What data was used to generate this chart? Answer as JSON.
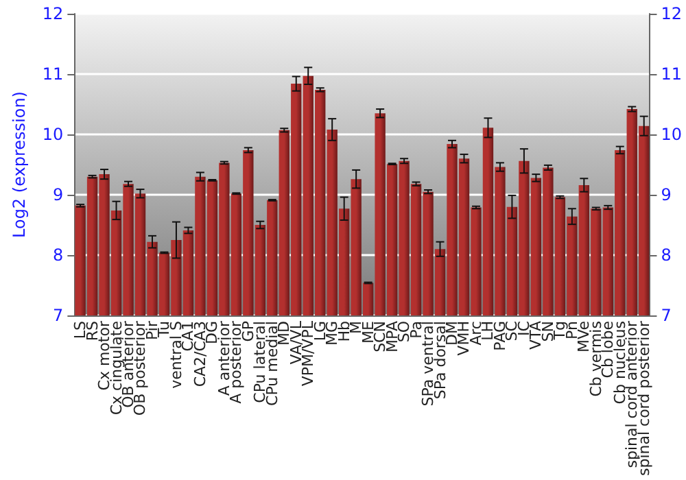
{
  "chart_data": {
    "type": "bar",
    "ylabel": "Log2 (expression)",
    "categories": [
      "LS",
      "RS",
      "Cx motor",
      "Cx cingulate",
      "OB anterior",
      "OB posterior",
      "Pir",
      "Tu",
      "ventral S",
      "CA1",
      "CA2/CA3",
      "DG",
      "A anterior",
      "A posterior",
      "GP",
      "CPu lateral",
      "CPu medial",
      "MD",
      "VA/VL",
      "VPM/VPL",
      "LG",
      "MG",
      "Hb",
      "M",
      "ME",
      "SCN",
      "MPA",
      "SO",
      "Pa",
      "SPa ventral",
      "SPa dorsal",
      "DM",
      "VMH",
      "Arc",
      "LH",
      "PAG",
      "SC",
      "IC",
      "VTA",
      "SN",
      "Tg",
      "Pn",
      "MVe",
      "Cb vermis",
      "Cb lobe",
      "Cb nucleus",
      "spinal cord anterior",
      "spinal cord posterior"
    ],
    "values": [
      8.82,
      9.3,
      9.34,
      8.74,
      9.18,
      9.02,
      8.22,
      8.04,
      8.25,
      8.41,
      9.3,
      9.24,
      9.53,
      9.02,
      9.74,
      8.5,
      8.91,
      10.07,
      10.84,
      10.97,
      10.74,
      10.08,
      8.77,
      9.26,
      7.54,
      10.35,
      9.51,
      9.56,
      9.18,
      9.05,
      8.1,
      9.84,
      9.6,
      8.79,
      10.11,
      9.46,
      8.8,
      9.56,
      9.28,
      9.45,
      8.96,
      8.64,
      9.16,
      8.77,
      8.79,
      9.74,
      10.42,
      10.14
    ],
    "errors": [
      0.02,
      0.02,
      0.08,
      0.15,
      0.04,
      0.07,
      0.1,
      0.01,
      0.3,
      0.05,
      0.07,
      0.01,
      0.02,
      0.01,
      0.04,
      0.06,
      0.01,
      0.03,
      0.12,
      0.14,
      0.03,
      0.18,
      0.19,
      0.15,
      0.01,
      0.07,
      0.01,
      0.04,
      0.03,
      0.03,
      0.12,
      0.06,
      0.07,
      0.02,
      0.16,
      0.07,
      0.19,
      0.2,
      0.06,
      0.04,
      0.02,
      0.13,
      0.11,
      0.02,
      0.03,
      0.06,
      0.04,
      0.16
    ],
    "color": "#b3302e",
    "ylim": [
      7,
      12
    ],
    "yticks": [
      7,
      8,
      9,
      10,
      11,
      12
    ],
    "y2lim": [
      7,
      12
    ],
    "y2ticks": [
      7,
      8,
      9,
      10,
      11,
      12
    ],
    "grid": "y"
  }
}
